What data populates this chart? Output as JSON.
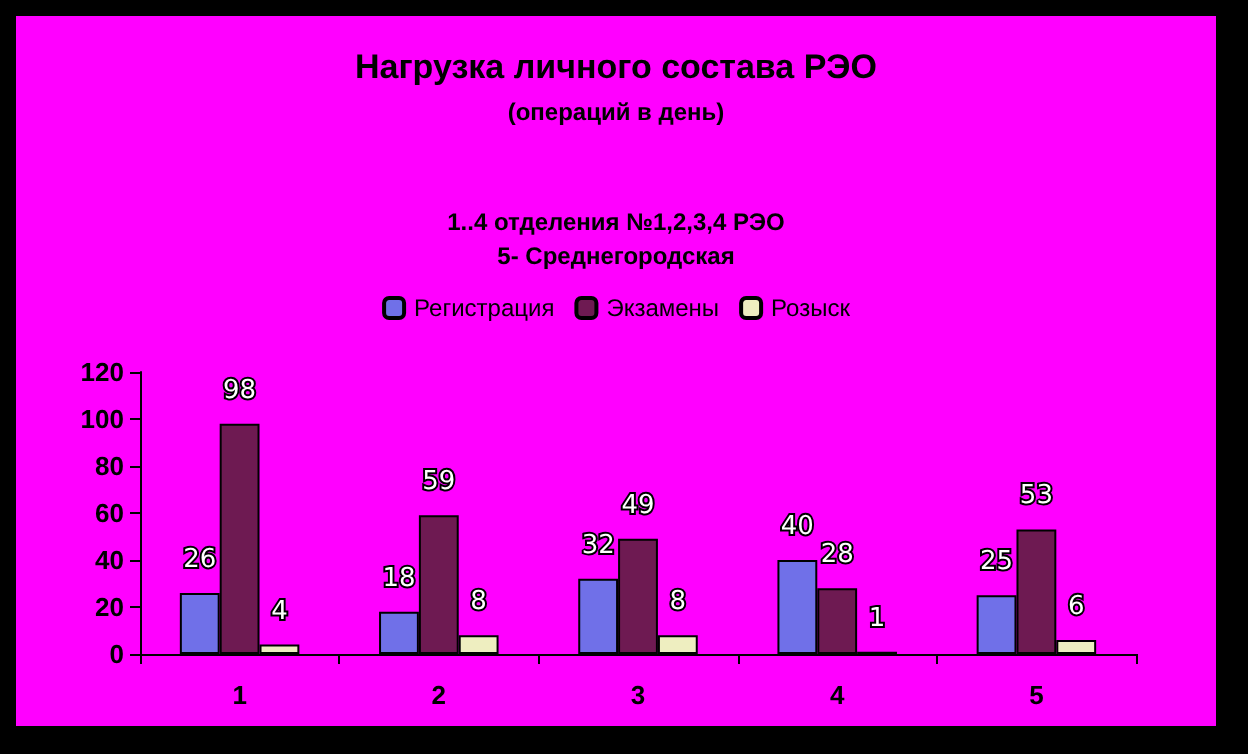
{
  "chart_data": {
    "type": "bar",
    "title": "Нагрузка личного состава РЭО",
    "subtitle": "(операций в день)",
    "annotations": [
      "1..4 отделения №1,2,3,4 РЭО",
      "5- Среднегородская"
    ],
    "categories": [
      "1",
      "2",
      "3",
      "4",
      "5"
    ],
    "series": [
      {
        "name": "Регистрация",
        "color": "#7070e8",
        "values": [
          26,
          18,
          32,
          40,
          25
        ]
      },
      {
        "name": "Экзамены",
        "color": "#6e1a52",
        "values": [
          98,
          59,
          49,
          28,
          53
        ]
      },
      {
        "name": "Розыск",
        "color": "#eeeec0",
        "values": [
          4,
          8,
          8,
          1,
          6
        ]
      }
    ],
    "ylim": [
      0,
      120
    ],
    "yticks": [
      0,
      20,
      40,
      60,
      80,
      100,
      120
    ],
    "grid": false,
    "legend": "top",
    "data_labels": true
  }
}
